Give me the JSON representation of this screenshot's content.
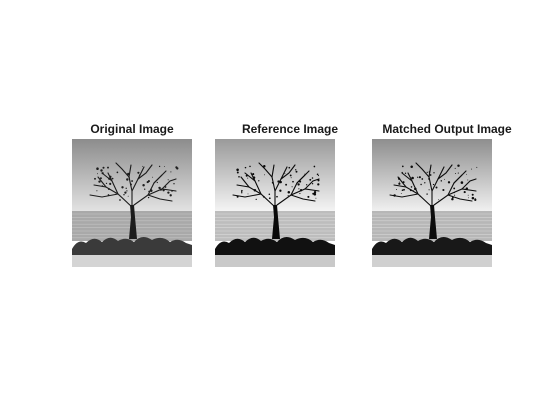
{
  "panels": [
    {
      "title": "Original Image",
      "tone": "original"
    },
    {
      "title": "Reference Image",
      "tone": "reference"
    },
    {
      "title": "Matched Output Image",
      "tone": "matched"
    }
  ]
}
